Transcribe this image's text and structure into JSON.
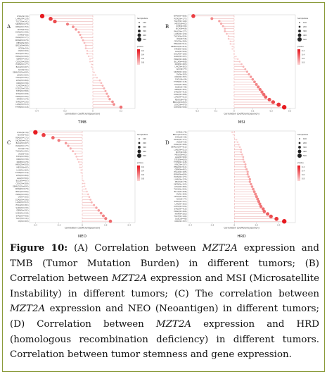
{
  "figure": {
    "label": "Figure 10:",
    "caption_parts": [
      {
        "t": " (A) Correlation between ",
        "s": "n"
      },
      {
        "t": "MZT2A",
        "s": "i"
      },
      {
        "t": " expression and TMB (Tumor Mutation Burden) in different tumors; (B) Correlation between ",
        "s": "n"
      },
      {
        "t": "MZT2A",
        "s": "i"
      },
      {
        "t": " expression and MSI (Microsatellite Instability) in different tumors; (C) The correlation between ",
        "s": "n"
      },
      {
        "t": "MZT2A",
        "s": "i"
      },
      {
        "t": " expression and NEO (Neoantigen) in different tumors; (D) Correlation between ",
        "s": "n"
      },
      {
        "t": "MZT2A",
        "s": "i"
      },
      {
        "t": " expression and HRD (homologous recombination deficiency) in different tumors. Correlation between tumor stemness and gene expression.",
        "s": "n"
      }
    ]
  },
  "chart_data": [
    {
      "panel": "A",
      "type": "scatter",
      "xlabel": "TMB",
      "axis_title": "Correlation coefficient(pearson)",
      "xlim": [
        -0.45,
        0.3
      ],
      "ticks": [
        -0.4,
        -0.2,
        0,
        0.2
      ],
      "legend_title_size": "SampleSize",
      "legend_sizes": [
        100,
        200,
        300,
        400,
        500
      ],
      "legend_title_p": "pValue",
      "legend_p": [
        0.2,
        0.4,
        0.6,
        0.8
      ],
      "rows": [
        "CHOL(N=36)",
        "LAML(N=129)",
        "TGCT(N=141)",
        "SKCM(N=474)",
        "READ(N=155)",
        "KICH(N=62)",
        "COAD(N=396)",
        "UVM(N=80)",
        "PAAD(N=177)",
        "KIPAN(N=676)",
        "MESO(N=82)",
        "BRCA(N=994)",
        "UCS(N=56)",
        "OV(N=303)",
        "ESCA(N=181)",
        "HNSC(N=500)",
        "GBM(N=391)",
        "CESC(N=289)",
        "PCPG(N=177)",
        "BLCA(N=407)",
        "ACC(N=91)",
        "GBMLGG(N=895)",
        "LGG(N=504)",
        "THCA(N=491)",
        "LUSC(N=466)",
        "KIRC(N=336)",
        "LIHC(N=362)",
        "UCEC(N=530)",
        "STES(N=589)",
        "STAD(N=408)",
        "PRAD(N=495)",
        "KIRP(N=279)",
        "SARC(N=235)",
        "LUAD(N=513)",
        "THYM(N=118)"
      ],
      "values": [
        -0.36,
        -0.3,
        -0.27,
        -0.18,
        -0.14,
        -0.12,
        -0.1,
        -0.09,
        -0.08,
        -0.07,
        -0.06,
        -0.05,
        -0.05,
        -0.04,
        -0.04,
        -0.03,
        -0.02,
        -0.02,
        -0.01,
        -0.01,
        0.0,
        0.01,
        0.02,
        0.03,
        0.05,
        0.06,
        0.07,
        0.08,
        0.09,
        0.1,
        0.11,
        0.12,
        0.14,
        0.15,
        0.2
      ]
    },
    {
      "panel": "B",
      "type": "scatter",
      "xlabel": "MSI",
      "axis_title": "Correlation coefficient(pearson)",
      "xlim": [
        -0.25,
        0.33
      ],
      "ticks": [
        -0.2,
        -0.1,
        0,
        0.1,
        0.2,
        0.3
      ],
      "legend_title_size": "SampleSize",
      "legend_sizes": [
        100,
        200,
        300,
        400,
        500
      ],
      "legend_title_p": "pValue",
      "legend_p": [
        0.2,
        0.4,
        0.6,
        0.8
      ],
      "rows": [
        "KIPAN(N=886)",
        "PCPG(N=177)",
        "TGCT(N=149)",
        "MESO(N=82)",
        "UVM(N=80)",
        "KICH(N=66)",
        "PAAD(N=177)",
        "LAML(N=129)",
        "THCA(N=504)",
        "UCS(N=56)",
        "CESC(N=289)",
        "HNSC(N=511)",
        "GBMLGG(N=910)",
        "STES(N=600)",
        "LGG(N=509)",
        "ESCA(N=185)",
        "SARC(N=237)",
        "PRAD(N=496)",
        "BLCA(N=408)",
        "KIRP(N=283)",
        "LIHC(N=363)",
        "ACC(N=77)",
        "SKCM(N=102)",
        "OV(N=300)",
        "KIRC(N=337)",
        "CHOL(N=36)",
        "THYM(N=118)",
        "LUSC(N=480)",
        "DLBC(N=48)",
        "GBM(N=401)",
        "STAD(N=415)",
        "COAD(N=288)",
        "LUAD(N=513)",
        "READ(N=78)",
        "BRCA(N=1053)",
        "LUSC(N=470)",
        "UCEC(N=530)"
      ],
      "values": [
        -0.22,
        -0.12,
        -0.08,
        -0.07,
        -0.06,
        -0.05,
        -0.05,
        -0.04,
        -0.03,
        -0.03,
        -0.02,
        -0.02,
        -0.01,
        -0.01,
        0.0,
        0.0,
        0.01,
        0.02,
        0.03,
        0.04,
        0.05,
        0.06,
        0.07,
        0.08,
        0.09,
        0.1,
        0.11,
        0.12,
        0.13,
        0.14,
        0.15,
        0.16,
        0.17,
        0.19,
        0.21,
        0.24,
        0.27
      ]
    },
    {
      "panel": "C",
      "type": "scatter",
      "xlabel": "NEO",
      "axis_title": "Correlation coefficient(pearson)",
      "xlim": [
        -0.45,
        0.45
      ],
      "ticks": [
        -0.4,
        -0.2,
        0,
        0.2,
        0.4
      ],
      "legend_title_size": "SampleSize",
      "legend_sizes": [
        100,
        200,
        300,
        400,
        500
      ],
      "legend_title_p": "pValue",
      "legend_p": [
        0.2,
        0.4,
        0.6,
        0.8
      ],
      "rows": [
        "CHOL(N=36)",
        "KICH(N=62)",
        "READ(N=172)",
        "SKCM(N=470)",
        "BLCA(N=407)",
        "PAAD(N=177)",
        "ACC(N=79)",
        "THCA(N=491)",
        "UCS(N=56)",
        "STES(N=589)",
        "KIRC(N=336)",
        "KIRP(N=279)",
        "HNSC(N=500)",
        "MESO(N=82)",
        "LIHC(N=362)",
        "THYM(N=118)",
        "LUSC(N=466)",
        "LGG(N=504)",
        "BLCA(N=407)",
        "CESC(N=289)",
        "GBMLGG(N=895)",
        "KIPAN(N=676)",
        "BRCA(N=994)",
        "PRAD(N=495)",
        "OV(N=303)",
        "COAD(N=396)",
        "LUAD(N=513)",
        "ESCA(N=181)",
        "SARC(N=235)",
        "GBM(N=391)",
        "UCEC(N=530)",
        "STAD(N=408)",
        "TGCT(N=141)",
        "OV(N=303)"
      ],
      "values": [
        -0.4,
        -0.33,
        -0.25,
        -0.2,
        -0.14,
        -0.12,
        -0.1,
        -0.08,
        -0.06,
        -0.05,
        -0.04,
        -0.03,
        -0.02,
        -0.02,
        -0.01,
        -0.01,
        0.0,
        0.0,
        0.01,
        0.02,
        0.02,
        0.03,
        0.04,
        0.05,
        0.06,
        0.07,
        0.08,
        0.1,
        0.12,
        0.14,
        0.16,
        0.18,
        0.2,
        0.24
      ]
    },
    {
      "panel": "D",
      "type": "scatter",
      "xlabel": "HRD",
      "axis_title": "Correlation coefficient(pearson)",
      "xlim": [
        -0.42,
        0.55
      ],
      "ticks": [
        -0.4,
        -0.2,
        0,
        0.2,
        0.4
      ],
      "legend_title_size": "SampleSize",
      "legend_sizes": [
        100,
        200,
        300,
        400,
        500
      ],
      "legend_title_p": "pValue",
      "legend_p": [
        0.2,
        0.4,
        0.6,
        0.8
      ],
      "rows": [
        "UVM(N=78)",
        "BRCA(N=1053)",
        "CHOL(N=36)",
        "PAAD(N=177)",
        "UCS(N=56)",
        "COAD(N=288)",
        "GBMLGG(N=912)",
        "LUAD(N=513)",
        "KICH(N=66)",
        "MESO(N=82)",
        "LGG(N=509)",
        "STES(N=600)",
        "THYM(N=118)",
        "KIRC(N=337)",
        "HNSC(N=511)",
        "GBM(N=401)",
        "ESCA(N=185)",
        "KIPAN(N=686)",
        "PCPG(N=177)",
        "LAML(N=129)",
        "READ(N=78)",
        "SKCM(N=102)",
        "LUSC(N=480)",
        "THCA(N=504)",
        "BLCA(N=408)",
        "OV(N=300)",
        "CESC(N=289)",
        "ACC(N=77)",
        "SARC(N=237)",
        "LIHC(N=363)",
        "UCEC(N=530)",
        "STAD(N=415)",
        "PRAD(N=496)",
        "KIRP(N=283)",
        "TGCT(N=149)",
        "DLBC(N=48)",
        "KIRC(N=337)"
      ],
      "values": [
        -0.02,
        -0.01,
        0.0,
        0.02,
        0.03,
        0.04,
        0.05,
        0.06,
        0.06,
        0.07,
        0.08,
        0.08,
        0.09,
        0.1,
        0.1,
        0.11,
        0.12,
        0.12,
        0.13,
        0.14,
        0.14,
        0.15,
        0.16,
        0.17,
        0.18,
        0.19,
        0.2,
        0.21,
        0.22,
        0.23,
        0.24,
        0.26,
        0.27,
        0.3,
        0.33,
        0.38,
        0.45
      ]
    }
  ]
}
